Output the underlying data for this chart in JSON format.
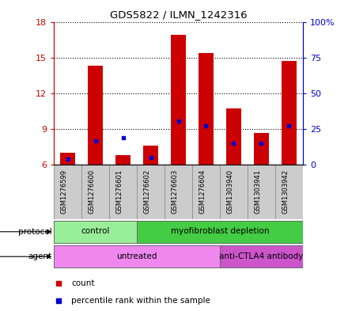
{
  "title": "GDS5822 / ILMN_1242316",
  "samples": [
    "GSM1276599",
    "GSM1276600",
    "GSM1276601",
    "GSM1276602",
    "GSM1276603",
    "GSM1276604",
    "GSM1303940",
    "GSM1303941",
    "GSM1303942"
  ],
  "count_values": [
    7.0,
    14.3,
    6.8,
    7.6,
    16.9,
    15.4,
    10.7,
    8.7,
    14.7
  ],
  "percentile_values": [
    6.5,
    8.0,
    8.3,
    6.6,
    9.7,
    9.3,
    7.8,
    7.8,
    9.3
  ],
  "ylim_left": [
    6,
    18
  ],
  "ylim_right": [
    0,
    100
  ],
  "yticks_left": [
    6,
    9,
    12,
    15,
    18
  ],
  "yticks_right": [
    0,
    25,
    50,
    75,
    100
  ],
  "ytick_labels_right": [
    "0",
    "25",
    "50",
    "75",
    "100%"
  ],
  "bar_color": "#cc0000",
  "percentile_color": "#0000cc",
  "bar_base": 6.0,
  "protocol_groups": [
    {
      "label": "control",
      "start": 0,
      "end": 3,
      "color": "#99ee99"
    },
    {
      "label": "myofibroblast depletion",
      "start": 3,
      "end": 9,
      "color": "#44cc44"
    }
  ],
  "agent_groups": [
    {
      "label": "untreated",
      "start": 0,
      "end": 6,
      "color": "#ee88ee"
    },
    {
      "label": "anti-CTLA4 antibody",
      "start": 6,
      "end": 9,
      "color": "#cc55cc"
    }
  ],
  "grid_color": "#000000",
  "background_color": "#ffffff",
  "bar_width": 0.55,
  "left_axis_color": "#cc0000",
  "right_axis_color": "#0000cc",
  "sample_bg_color": "#cccccc",
  "legend_items": [
    {
      "label": "count",
      "color": "#cc0000"
    },
    {
      "label": "percentile rank within the sample",
      "color": "#0000cc"
    }
  ]
}
